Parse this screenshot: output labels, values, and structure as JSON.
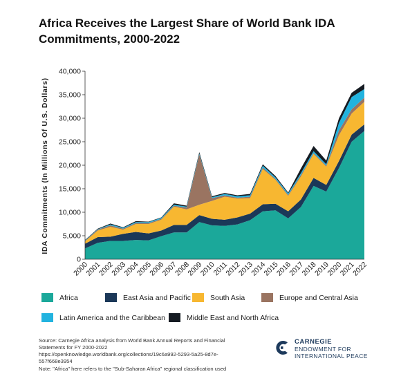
{
  "title": "Africa Receives the Largest Share of World Bank IDA Commitments, 2000-2022",
  "source_text": "Source: Carnegie Africa analysis from World Bank Annual Reports and Financial Statements for FY 2000-2022 https://openknowledge.worldbank.org/collections/19c6a992-5293-5a25-8d7e-557f668e3954",
  "note_text": "Note: \"Africa\" here refers to the \"Sub-Saharan Africa\" regional classification used",
  "logo": {
    "line1": "CARNEGIE",
    "line2": "ENDOWMENT FOR",
    "line3": "INTERNATIONAL PEACE",
    "color": "#1d3a5c"
  },
  "chart_data": {
    "type": "area",
    "stacked": true,
    "title": "Africa Receives the Largest Share of World Bank IDA Commitments, 2000-2022",
    "xlabel": "",
    "ylabel": "IDA Commitments (In Millions Of U.S. Dollars)",
    "ylim": [
      0,
      40000
    ],
    "yticks": [
      0,
      5000,
      10000,
      15000,
      20000,
      25000,
      30000,
      35000,
      40000
    ],
    "ytick_labels": [
      "0",
      "5,000",
      "10,000",
      "15,000",
      "20,000",
      "25,000",
      "30,000",
      "35,000",
      "40,000"
    ],
    "x": [
      "2000",
      "2001",
      "2002",
      "2003",
      "2004",
      "2005",
      "2006",
      "2007",
      "2008",
      "2009",
      "2010",
      "2011",
      "2012",
      "2013",
      "2014",
      "2015",
      "2016",
      "2017",
      "2018",
      "2019",
      "2020",
      "2021",
      "2022"
    ],
    "grid": false,
    "legend_position": "bottom",
    "series": [
      {
        "name": "Africa",
        "color": "#1ba89a",
        "values": [
          2300,
          3500,
          3900,
          3900,
          4100,
          4000,
          4900,
          5700,
          5700,
          7900,
          7200,
          7100,
          7400,
          8300,
          10200,
          10400,
          8700,
          11100,
          15600,
          14400,
          19400,
          25000,
          27300
        ]
      },
      {
        "name": "East Asia and Pacific",
        "color": "#1b3858",
        "values": [
          1000,
          1200,
          900,
          1500,
          1700,
          1500,
          1200,
          1600,
          1600,
          1500,
          1400,
          1300,
          1500,
          1400,
          1500,
          1400,
          1500,
          1600,
          1700,
          1400,
          1500,
          1500,
          1400
        ]
      },
      {
        "name": "South Asia",
        "color": "#f7b731",
        "values": [
          500,
          1400,
          2100,
          900,
          1700,
          2000,
          2300,
          3900,
          3300,
          2200,
          3800,
          4900,
          4000,
          3300,
          7500,
          5100,
          3300,
          4900,
          5100,
          3900,
          5500,
          4500,
          4800
        ]
      },
      {
        "name": "Europe and Central Asia",
        "color": "#9a7461",
        "values": [
          100,
          200,
          300,
          200,
          200,
          200,
          200,
          200,
          400,
          10700,
          600,
          300,
          200,
          300,
          300,
          200,
          200,
          300,
          200,
          200,
          1000,
          900,
          900
        ]
      },
      {
        "name": "Latin America and the Caribbean",
        "color": "#22b3df",
        "values": [
          100,
          100,
          200,
          200,
          200,
          200,
          200,
          200,
          200,
          200,
          200,
          300,
          300,
          300,
          400,
          300,
          300,
          400,
          400,
          300,
          1600,
          2600,
          1800
        ]
      },
      {
        "name": "Middle East and North Africa",
        "color": "#151b22",
        "values": [
          100,
          100,
          200,
          100,
          200,
          100,
          100,
          300,
          200,
          300,
          200,
          200,
          200,
          300,
          300,
          300,
          200,
          1000,
          1100,
          800,
          1000,
          900,
          1100
        ]
      }
    ]
  }
}
